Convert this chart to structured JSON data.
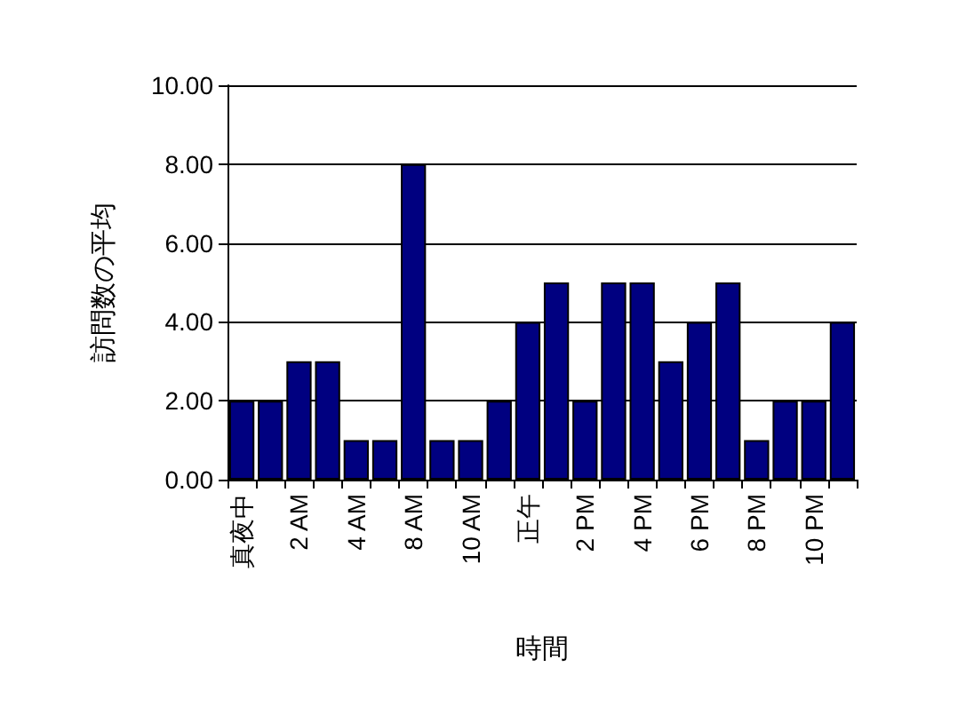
{
  "chart_data": {
    "type": "bar",
    "xlabel": "時間",
    "ylabel": "訪問数の平均",
    "categories": [
      "真夜中",
      null,
      "2 AM",
      null,
      "4 AM",
      null,
      "8 AM",
      null,
      "10 AM",
      null,
      "正午",
      null,
      "2 PM",
      null,
      "4 PM",
      null,
      "6 PM",
      null,
      "8 PM",
      null,
      "10 PM",
      null
    ],
    "values": [
      2,
      2,
      3,
      3,
      1,
      1,
      8,
      1,
      1,
      2,
      4,
      5,
      2,
      5,
      5,
      3,
      4,
      5,
      1,
      2,
      2,
      4
    ],
    "color": "#000080",
    "ylim": [
      0,
      10
    ],
    "yticks": [
      {
        "value": 0,
        "label": "0.00"
      },
      {
        "value": 2,
        "label": "2.00"
      },
      {
        "value": 4,
        "label": "4.00"
      },
      {
        "value": 6,
        "label": "6.00"
      },
      {
        "value": 8,
        "label": "8.00"
      },
      {
        "value": 10,
        "label": "10.00"
      }
    ],
    "grid": "y"
  }
}
